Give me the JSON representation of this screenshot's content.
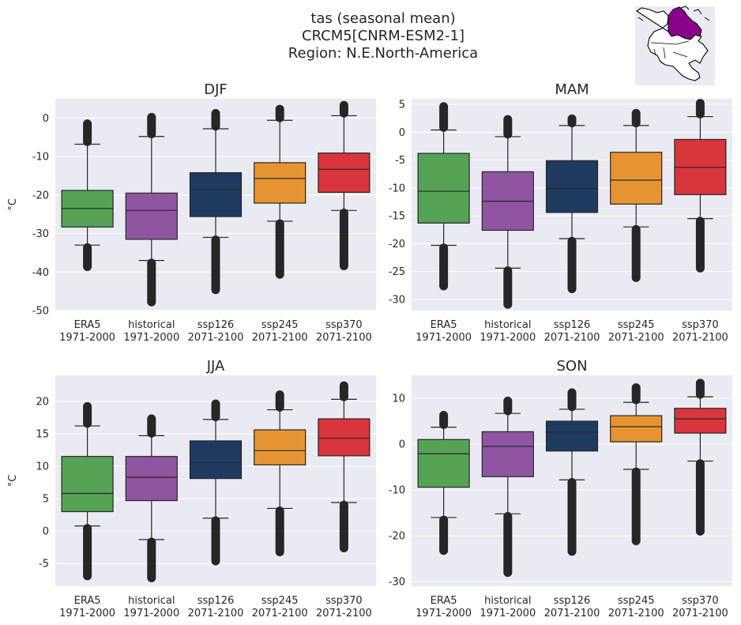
{
  "figure": {
    "title_lines": [
      "tas (seasonal mean)",
      "CRCM5[CNRM-ESM2-1]",
      "Region: N.E.North-America"
    ],
    "inset_map": "north-america-map-highlighted-region",
    "region_color": "#8b008b",
    "background_color": "#eaeaf2"
  },
  "chart_data": [
    {
      "type": "box",
      "title": "DJF",
      "ylabel": "°C",
      "ylim": [
        -50,
        5
      ],
      "yticks": [
        0,
        -10,
        -20,
        -30,
        -40,
        -50
      ],
      "grid": true,
      "categories": [
        [
          "ERA5",
          "1971-2000"
        ],
        [
          "historical",
          "1971-2000"
        ],
        [
          "ssp126",
          "2071-2100"
        ],
        [
          "ssp245",
          "2071-2100"
        ],
        [
          "ssp370",
          "2071-2100"
        ]
      ],
      "colors": [
        "#55a354",
        "#8f55a0",
        "#1f3a5f",
        "#e69432",
        "#d8353d"
      ],
      "boxes": [
        {
          "whislo": -33,
          "q1": -28.3,
          "med": -23.5,
          "q3": -18.8,
          "whishi": -6.8,
          "flier_lo": -38.6,
          "flier_hi": -1.5
        },
        {
          "whislo": -37,
          "q1": -31.5,
          "med": -24,
          "q3": -19.5,
          "whishi": -4.8,
          "flier_lo": -47.8,
          "flier_hi": 0.2
        },
        {
          "whislo": -31,
          "q1": -25.6,
          "med": -18.6,
          "q3": -14.2,
          "whishi": -2.8,
          "flier_lo": -44.6,
          "flier_hi": 1.2
        },
        {
          "whislo": -26.8,
          "q1": -22.1,
          "med": -15.7,
          "q3": -11.6,
          "whishi": -0.6,
          "flier_lo": -40.6,
          "flier_hi": 2.3
        },
        {
          "whislo": -24,
          "q1": -19.3,
          "med": -13.3,
          "q3": -9.1,
          "whishi": 0.6,
          "flier_lo": -38.4,
          "flier_hi": 3.3
        }
      ]
    },
    {
      "type": "box",
      "title": "MAM",
      "ylabel": "",
      "ylim": [
        -32,
        6
      ],
      "yticks": [
        5,
        0,
        -5,
        -10,
        -15,
        -20,
        -25,
        -30
      ],
      "grid": true,
      "categories": [
        [
          "ERA5",
          "1971-2000"
        ],
        [
          "historical",
          "1971-2000"
        ],
        [
          "ssp126",
          "2071-2100"
        ],
        [
          "ssp245",
          "2071-2100"
        ],
        [
          "ssp370",
          "2071-2100"
        ]
      ],
      "colors": [
        "#55a354",
        "#8f55a0",
        "#1f3a5f",
        "#e69432",
        "#d8353d"
      ],
      "boxes": [
        {
          "whislo": -20.3,
          "q1": -16.3,
          "med": -10.6,
          "q3": -3.8,
          "whishi": 0.4,
          "flier_lo": -27.6,
          "flier_hi": 4.6
        },
        {
          "whislo": -24.4,
          "q1": -17.6,
          "med": -12.4,
          "q3": -7.1,
          "whishi": -0.8,
          "flier_lo": -30.9,
          "flier_hi": 2.3
        },
        {
          "whislo": -19.1,
          "q1": -14.4,
          "med": -10.1,
          "q3": -5.1,
          "whishi": 1.2,
          "flier_lo": -28.1,
          "flier_hi": 2.4
        },
        {
          "whislo": -17,
          "q1": -12.9,
          "med": -8.6,
          "q3": -3.6,
          "whishi": 1.2,
          "flier_lo": -26.1,
          "flier_hi": 3.4
        },
        {
          "whislo": -15.5,
          "q1": -11.2,
          "med": -6.3,
          "q3": -1.3,
          "whishi": 2.8,
          "flier_lo": -24.4,
          "flier_hi": 5.2
        }
      ]
    },
    {
      "type": "box",
      "title": "JJA",
      "ylabel": "°C",
      "ylim": [
        -8.5,
        24
      ],
      "yticks": [
        20,
        15,
        10,
        5,
        0,
        -5
      ],
      "grid": true,
      "categories": [
        [
          "ERA5",
          "1971-2000"
        ],
        [
          "historical",
          "1971-2000"
        ],
        [
          "ssp126",
          "2071-2100"
        ],
        [
          "ssp245",
          "2071-2100"
        ],
        [
          "ssp370",
          "2071-2100"
        ]
      ],
      "colors": [
        "#55a354",
        "#8f55a0",
        "#1f3a5f",
        "#e69432",
        "#d8353d"
      ],
      "boxes": [
        {
          "whislo": 0.8,
          "q1": 3,
          "med": 5.8,
          "q3": 11.5,
          "whishi": 16.2,
          "flier_lo": -6.9,
          "flier_hi": 19.2
        },
        {
          "whislo": -1.3,
          "q1": 4.7,
          "med": 8.3,
          "q3": 11.5,
          "whishi": 14.7,
          "flier_lo": -7.2,
          "flier_hi": 17.3
        },
        {
          "whislo": 2,
          "q1": 8.1,
          "med": 10.6,
          "q3": 13.9,
          "whishi": 17.2,
          "flier_lo": -4.6,
          "flier_hi": 19.6
        },
        {
          "whislo": 3.5,
          "q1": 10.2,
          "med": 12.4,
          "q3": 15.6,
          "whishi": 18.7,
          "flier_lo": -3.2,
          "flier_hi": 21
        },
        {
          "whislo": 4.4,
          "q1": 11.6,
          "med": 14.3,
          "q3": 17.3,
          "whishi": 20.3,
          "flier_lo": -2.6,
          "flier_hi": 22.4
        }
      ]
    },
    {
      "type": "box",
      "title": "SON",
      "ylabel": "",
      "ylim": [
        -31,
        15
      ],
      "yticks": [
        10,
        0,
        -10,
        -20,
        -30
      ],
      "grid": true,
      "categories": [
        [
          "ERA5",
          "1971-2000"
        ],
        [
          "historical",
          "1971-2000"
        ],
        [
          "ssp126",
          "2071-2100"
        ],
        [
          "ssp245",
          "2071-2100"
        ],
        [
          "ssp370",
          "2071-2100"
        ]
      ],
      "colors": [
        "#55a354",
        "#8f55a0",
        "#1f3a5f",
        "#e69432",
        "#d8353d"
      ],
      "boxes": [
        {
          "whislo": -16,
          "q1": -9.4,
          "med": -2.1,
          "q3": 1,
          "whishi": 3.7,
          "flier_lo": -23.2,
          "flier_hi": 6.3
        },
        {
          "whislo": -15.2,
          "q1": -7.1,
          "med": -0.5,
          "q3": 2.7,
          "whishi": 6.7,
          "flier_lo": -28,
          "flier_hi": 9.4
        },
        {
          "whislo": -7.8,
          "q1": -1.5,
          "med": 2.6,
          "q3": 5,
          "whishi": 7.6,
          "flier_lo": -23.4,
          "flier_hi": 11.2
        },
        {
          "whislo": -5.5,
          "q1": 0.5,
          "med": 3.8,
          "q3": 6.2,
          "whishi": 9.1,
          "flier_lo": -21.1,
          "flier_hi": 12.3
        },
        {
          "whislo": -3.7,
          "q1": 2.4,
          "med": 5.5,
          "q3": 7.8,
          "whishi": 10.3,
          "flier_lo": -19,
          "flier_hi": 13.3
        }
      ]
    }
  ]
}
